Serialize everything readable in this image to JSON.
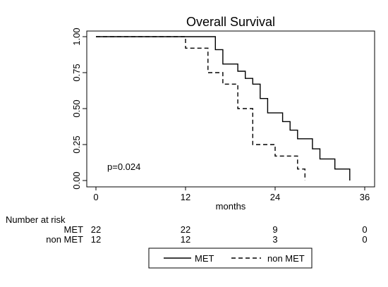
{
  "chart_data": {
    "type": "line",
    "subtype": "kaplan-meier step",
    "title": "Overall Survival",
    "xlabel": "months",
    "ylabel": "",
    "xlim": [
      0,
      36
    ],
    "ylim": [
      0,
      1
    ],
    "xticks": [
      0,
      12,
      24,
      36
    ],
    "yticks": [
      "0.00",
      "0.25",
      "0.50",
      "0.75",
      "1.00"
    ],
    "annotation": "p=0.024",
    "grid": false,
    "legend_position": "bottom",
    "series": [
      {
        "name": "MET",
        "line_style": "solid",
        "color": "#000000",
        "points": [
          [
            0,
            1.0
          ],
          [
            16,
            1.0
          ],
          [
            16,
            0.91
          ],
          [
            17,
            0.91
          ],
          [
            17,
            0.81
          ],
          [
            19,
            0.81
          ],
          [
            19,
            0.76
          ],
          [
            20,
            0.76
          ],
          [
            20,
            0.71
          ],
          [
            21,
            0.71
          ],
          [
            21,
            0.67
          ],
          [
            22,
            0.67
          ],
          [
            22,
            0.57
          ],
          [
            23,
            0.57
          ],
          [
            23,
            0.47
          ],
          [
            25,
            0.47
          ],
          [
            25,
            0.41
          ],
          [
            26,
            0.41
          ],
          [
            26,
            0.35
          ],
          [
            27,
            0.35
          ],
          [
            27,
            0.29
          ],
          [
            29,
            0.29
          ],
          [
            29,
            0.22
          ],
          [
            30,
            0.22
          ],
          [
            30,
            0.15
          ],
          [
            32,
            0.15
          ],
          [
            32,
            0.08
          ],
          [
            34,
            0.08
          ],
          [
            34,
            0.0
          ]
        ]
      },
      {
        "name": "non MET",
        "line_style": "dashed",
        "color": "#000000",
        "points": [
          [
            0,
            1.0
          ],
          [
            12,
            1.0
          ],
          [
            12,
            0.92
          ],
          [
            15,
            0.92
          ],
          [
            15,
            0.75
          ],
          [
            17,
            0.75
          ],
          [
            17,
            0.67
          ],
          [
            19,
            0.67
          ],
          [
            19,
            0.5
          ],
          [
            21,
            0.5
          ],
          [
            21,
            0.25
          ],
          [
            24,
            0.25
          ],
          [
            24,
            0.17
          ],
          [
            27,
            0.17
          ],
          [
            27,
            0.08
          ],
          [
            28,
            0.08
          ],
          [
            28,
            0.0
          ]
        ]
      }
    ],
    "risk_table": {
      "title": "Number at risk",
      "times": [
        0,
        12,
        24,
        36
      ],
      "rows": [
        {
          "label": "MET",
          "counts": [
            "22",
            "22",
            "9",
            "0"
          ]
        },
        {
          "label": "non MET",
          "counts": [
            "12",
            "12",
            "3",
            "0"
          ]
        }
      ]
    }
  }
}
